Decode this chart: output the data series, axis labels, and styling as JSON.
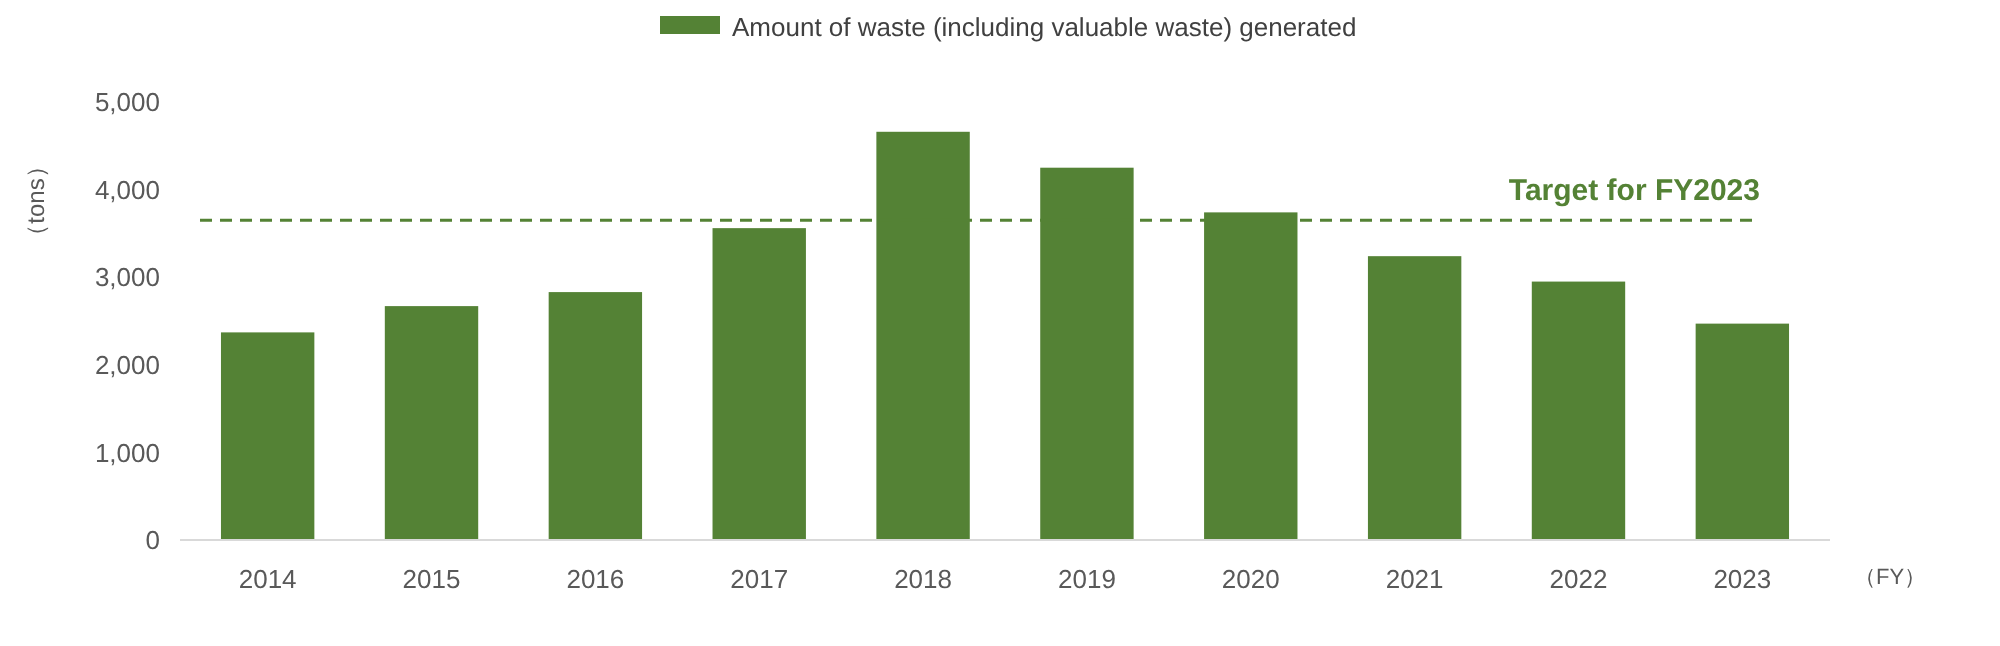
{
  "chart_data": {
    "type": "bar",
    "categories": [
      "2014",
      "2015",
      "2016",
      "2017",
      "2018",
      "2019",
      "2020",
      "2021",
      "2022",
      "2023"
    ],
    "series": [
      {
        "name": "Amount of waste (including valuable waste) generated",
        "color": "#548235",
        "values": [
          2370,
          2670,
          2830,
          3560,
          4660,
          4250,
          3740,
          3240,
          2950,
          2470
        ]
      }
    ],
    "ylabel": "（tons）",
    "xlabel": "（FY）",
    "ylim": [
      0,
      5000
    ],
    "yticks": [
      {
        "value": 0,
        "label": "0"
      },
      {
        "value": 1000,
        "label": "1,000"
      },
      {
        "value": 2000,
        "label": "2,000"
      },
      {
        "value": 3000,
        "label": "3,000"
      },
      {
        "value": 4000,
        "label": "4,000"
      },
      {
        "value": 5000,
        "label": "5,000"
      }
    ],
    "ref_lines": [
      {
        "axis": "y",
        "value": 3650,
        "label": "Target for FY2023",
        "color": "#548235",
        "line_style": "dashed"
      }
    ],
    "legend": "top",
    "grid": false
  }
}
